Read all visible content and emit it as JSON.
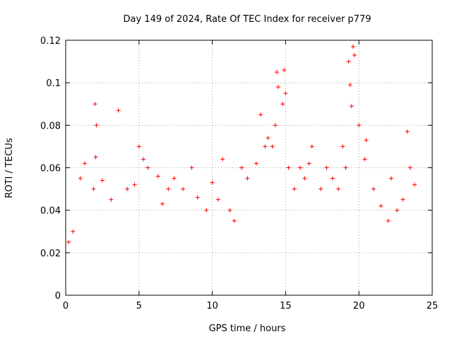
{
  "chart_data": {
    "type": "scatter",
    "title": "Day 149 of 2024, Rate Of TEC Index for receiver p779",
    "xlabel": "GPS time / hours",
    "ylabel": "ROTI / TECUs",
    "xlim": [
      0,
      25
    ],
    "ylim": [
      0,
      0.12
    ],
    "x_ticks": [
      "0",
      "5",
      "10",
      "15",
      "20",
      "25"
    ],
    "y_ticks": [
      "0",
      "0.02",
      "0.04",
      "0.06",
      "0.08",
      "0.1",
      "0.12"
    ],
    "x_tick_values": [
      0,
      5,
      10,
      15,
      20,
      25
    ],
    "y_tick_values": [
      0,
      0.02,
      0.04,
      0.06,
      0.08,
      0.1,
      0.12
    ],
    "grid": true,
    "marker": "+",
    "color": "#ff0000",
    "series": [
      {
        "name": "ROTI",
        "x": [
          0.2,
          0.5,
          1.0,
          1.3,
          1.9,
          2.0,
          2.1,
          2.05,
          2.5,
          3.1,
          3.6,
          4.2,
          4.7,
          5.0,
          5.3,
          5.6,
          6.3,
          6.6,
          7.0,
          7.4,
          8.0,
          8.6,
          9.0,
          9.6,
          10.0,
          10.4,
          10.7,
          11.2,
          11.5,
          12.0,
          12.4,
          13.0,
          13.3,
          13.6,
          13.8,
          14.1,
          14.3,
          14.4,
          14.5,
          14.8,
          14.9,
          15.0,
          15.2,
          15.6,
          16.0,
          16.3,
          16.6,
          16.8,
          17.4,
          17.8,
          18.2,
          18.6,
          18.9,
          19.1,
          19.3,
          19.4,
          19.5,
          19.6,
          19.7,
          20.0,
          20.4,
          20.5,
          21.0,
          21.5,
          22.0,
          22.2,
          22.6,
          23.0,
          23.3,
          23.5,
          23.8
        ],
        "y": [
          0.025,
          0.03,
          0.055,
          0.062,
          0.05,
          0.09,
          0.08,
          0.065,
          0.054,
          0.045,
          0.087,
          0.05,
          0.052,
          0.07,
          0.064,
          0.06,
          0.056,
          0.043,
          0.05,
          0.055,
          0.05,
          0.06,
          0.046,
          0.04,
          0.053,
          0.045,
          0.064,
          0.04,
          0.035,
          0.06,
          0.055,
          0.062,
          0.085,
          0.07,
          0.074,
          0.07,
          0.08,
          0.105,
          0.098,
          0.09,
          0.106,
          0.095,
          0.06,
          0.05,
          0.06,
          0.055,
          0.062,
          0.07,
          0.05,
          0.06,
          0.055,
          0.05,
          0.07,
          0.06,
          0.11,
          0.099,
          0.089,
          0.117,
          0.113,
          0.08,
          0.064,
          0.073,
          0.05,
          0.042,
          0.035,
          0.055,
          0.04,
          0.045,
          0.077,
          0.06,
          0.052
        ]
      }
    ]
  }
}
